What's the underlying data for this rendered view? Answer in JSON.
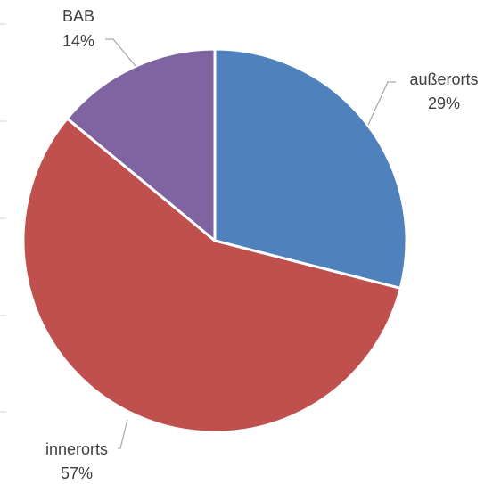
{
  "chart_data": {
    "type": "pie",
    "title": "",
    "legend": "none",
    "slices": [
      {
        "label": "außerorts",
        "value": 29,
        "value_label": "29%",
        "color": "#4f81bd"
      },
      {
        "label": "innerorts",
        "value": 57,
        "value_label": "57%",
        "color": "#c0504d"
      },
      {
        "label": "BAB",
        "value": 14,
        "value_label": "14%",
        "color": "#8064a2"
      }
    ]
  }
}
